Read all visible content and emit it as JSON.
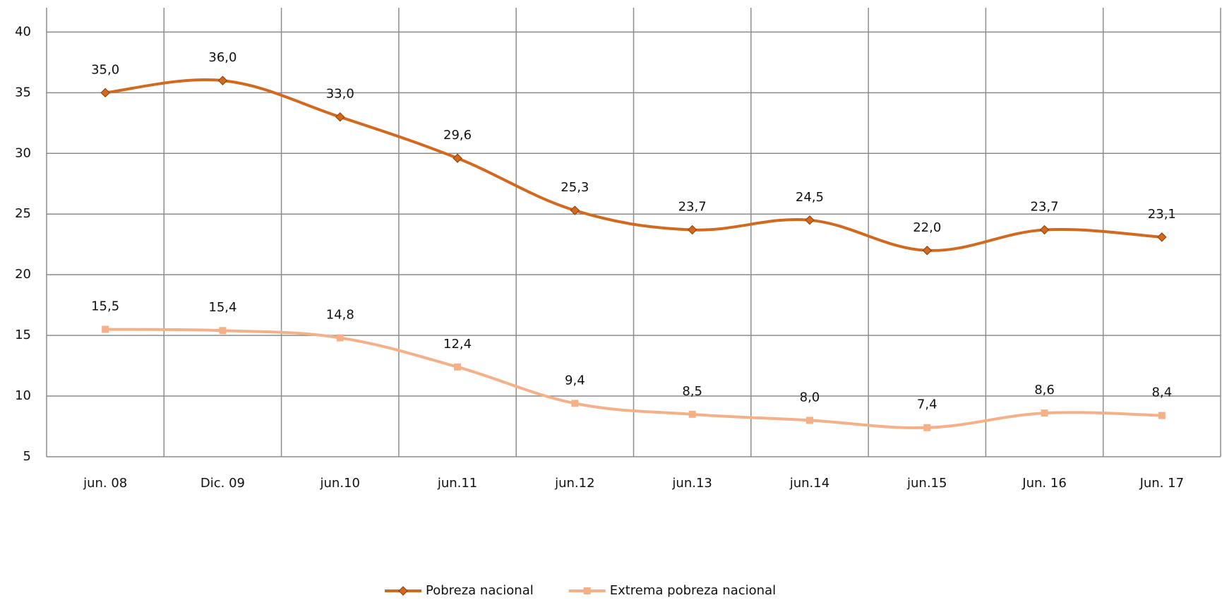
{
  "chart_data": {
    "type": "line",
    "categories": [
      "jun. 08",
      "Dic. 09",
      "jun.10",
      "jun.11",
      "jun.12",
      "jun.13",
      "jun.14",
      "jun.15",
      "Jun. 16",
      "Jun. 17"
    ],
    "series": [
      {
        "name": "Pobreza nacional",
        "color": "#d2691e",
        "marker": "diamond",
        "values": [
          35.0,
          36.0,
          33.0,
          29.6,
          25.3,
          23.7,
          24.5,
          22.0,
          23.7,
          23.1
        ],
        "value_labels": [
          "35,0",
          "36,0",
          "33,0",
          "29,6",
          "25,3",
          "23,7",
          "24,5",
          "22,0",
          "23,7",
          "23,1"
        ]
      },
      {
        "name": "Extrema pobreza nacional",
        "color": "#f5b088",
        "marker": "square",
        "values": [
          15.5,
          15.4,
          14.8,
          12.4,
          9.4,
          8.5,
          8.0,
          7.4,
          8.6,
          8.4
        ],
        "value_labels": [
          "15,5",
          "15,4",
          "14,8",
          "12,4",
          "9,4",
          "8,5",
          "8,0",
          "7,4",
          "8,6",
          "8,4"
        ]
      }
    ],
    "ylim": [
      5,
      42
    ],
    "yticks": [
      5,
      10,
      15,
      20,
      25,
      30,
      35,
      40
    ],
    "grid": true,
    "legend": "bottom"
  }
}
